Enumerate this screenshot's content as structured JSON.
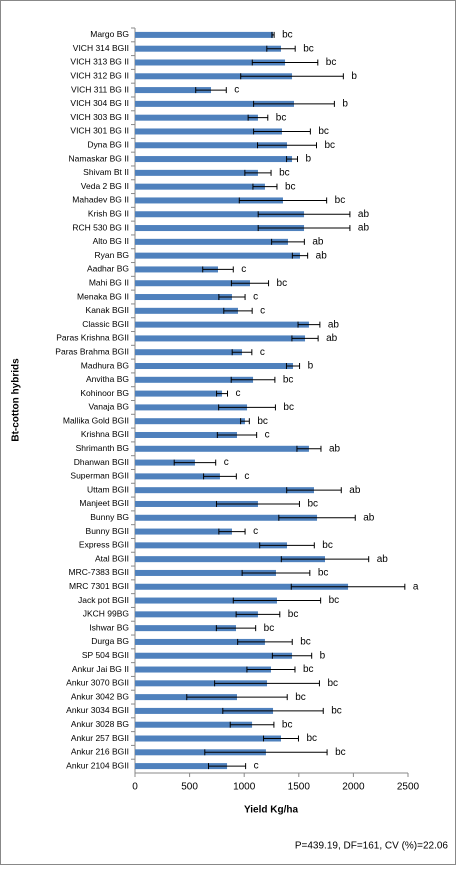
{
  "chart_data": {
    "type": "hbar_error",
    "y_label": "Bt-cotton hybrids",
    "x_label": "Yield Kg/ha",
    "note": "P=439.19, DF=161, CV (%)=22.06",
    "xlim": [
      0,
      2500
    ],
    "xticks": [
      0,
      500,
      1000,
      1500,
      2000,
      2500
    ],
    "categories": [
      "Margo BG",
      "VICH 314 BGII",
      "VICH 313 BG II",
      "VICH 312 BG II",
      "VICH 311 BG II",
      "VICH 304 BG II",
      "VICH 303 BG II",
      "VICH 301 BG II",
      "Dyna BG II",
      "Namaskar BG II",
      "Shivam Bt II",
      "Veda 2 BG II",
      "Mahadev BG II",
      "Krish BG II",
      "RCH 530 BG II",
      "Alto BG II",
      "Ryan BG",
      "Aadhar BG",
      "Mahi  BG II",
      "Menaka BG II",
      "Kanak BGII",
      "Classic BGII",
      "Paras Krishna BGII",
      "Paras Brahma BGII",
      "Madhura BG",
      "Anvitha BG",
      "Kohinoor BG",
      "Vanaja BG",
      "Mallika Gold BGII",
      "Krishna BGII",
      "Shrimanth BG",
      "Dhanwan BGII",
      "Superman BGII",
      "Uttam BGII",
      "Manjeet BGII",
      "Bunny BG",
      "Bunny BGII",
      "Express BGII",
      "Atal BGII",
      "MRC-7383 BGII",
      "MRC 7301 BGII",
      "Jack pot BGII",
      "JKCH 99BG",
      "Ishwar BG",
      "Durga BG",
      "SP 504 BGII",
      "Ankur Jai BG II",
      "Ankur 3070 BGII",
      "Ankur 3042 BG",
      "Ankur 3034 BGII",
      "Ankur 3028 BG",
      "Ankur 257 BGII",
      "Ankur 216 BGII",
      "Ankur 2104 BGII"
    ],
    "series": [
      {
        "color": "#4f81bd",
        "values": [
          1264,
          1337,
          1374,
          1438,
          696,
          1456,
          1126,
          1346,
          1392,
          1438,
          1126,
          1190,
          1355,
          1548,
          1548,
          1401,
          1511,
          760,
          1053,
          888,
          943,
          1593,
          1557,
          980,
          1447,
          1081,
          797,
          1026,
          1007,
          934,
          1593,
          549,
          778,
          1639,
          1126,
          1667,
          888,
          1392,
          1740,
          1291,
          1951,
          1300,
          1126,
          925,
          1190,
          1438,
          1245,
          1209,
          934,
          1264,
          1072,
          1337,
          1199,
          843
        ],
        "errors": [
          10,
          130,
          300,
          470,
          140,
          370,
          90,
          260,
          270,
          50,
          120,
          110,
          400,
          420,
          420,
          150,
          70,
          140,
          170,
          120,
          130,
          100,
          120,
          90,
          60,
          200,
          50,
          260,
          40,
          180,
          110,
          190,
          150,
          250,
          380,
          350,
          120,
          250,
          400,
          310,
          520,
          400,
          200,
          180,
          250,
          180,
          220,
          480,
          460,
          460,
          200,
          160,
          560,
          170
        ],
        "letters": [
          "bc",
          "bc",
          "bc",
          "b",
          "c",
          "b",
          "bc",
          "bc",
          "bc",
          "b",
          "bc",
          "bc",
          "bc",
          "ab",
          "ab",
          "ab",
          "ab",
          "c",
          "bc",
          "c",
          "c",
          "ab",
          "ab",
          "c",
          "b",
          "bc",
          "c",
          "bc",
          "bc",
          "c",
          "ab",
          "c",
          "c",
          "ab",
          "bc",
          "ab",
          "c",
          "bc",
          "ab",
          "bc",
          "a",
          "bc",
          "bc",
          "bc",
          "bc",
          "b",
          "bc",
          "bc",
          "bc",
          "bc",
          "bc",
          "bc",
          "bc",
          "c"
        ]
      }
    ]
  }
}
